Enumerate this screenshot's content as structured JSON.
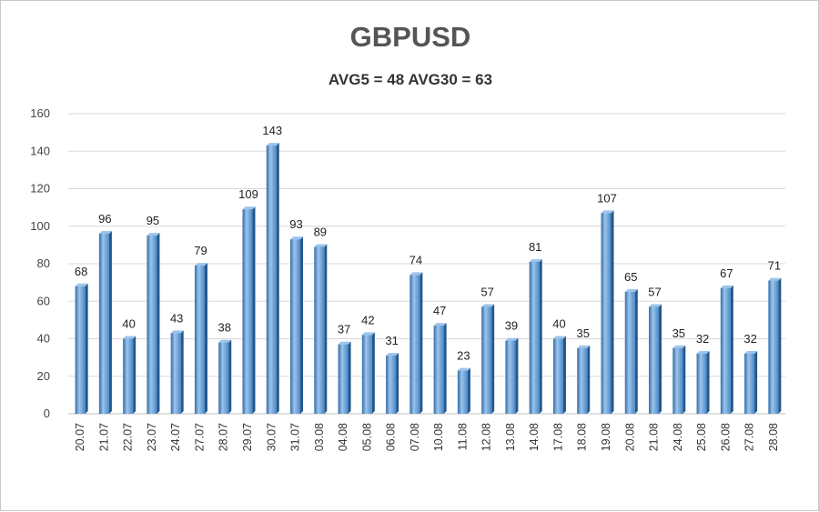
{
  "chart_data": {
    "type": "bar",
    "title": "GBPUSD",
    "subtitle": "AVG5 = 48 AVG30 = 63",
    "categories": [
      "20.07",
      "21.07",
      "22.07",
      "23.07",
      "24.07",
      "27.07",
      "28.07",
      "29.07",
      "30.07",
      "31.07",
      "03.08",
      "04.08",
      "05.08",
      "06.08",
      "07.08",
      "10.08",
      "11.08",
      "12.08",
      "13.08",
      "14.08",
      "17.08",
      "18.08",
      "19.08",
      "20.08",
      "21.08",
      "24.08",
      "25.08",
      "26.08",
      "27.08",
      "28.08"
    ],
    "values": [
      68,
      96,
      40,
      95,
      43,
      79,
      38,
      109,
      143,
      93,
      89,
      37,
      42,
      31,
      74,
      47,
      23,
      57,
      39,
      81,
      40,
      35,
      107,
      65,
      57,
      35,
      32,
      67,
      32,
      71
    ],
    "ylim": [
      0,
      160
    ],
    "yticks": [
      0,
      20,
      40,
      60,
      80,
      100,
      120,
      140,
      160
    ],
    "grid": true,
    "legend": "none",
    "colors": {
      "bar_light": "#9dc4ec",
      "bar_mid": "#5b9bd5",
      "bar_dark": "#2e6da8",
      "bar_side": "#24588a",
      "grid": "#d9d9d9"
    }
  }
}
